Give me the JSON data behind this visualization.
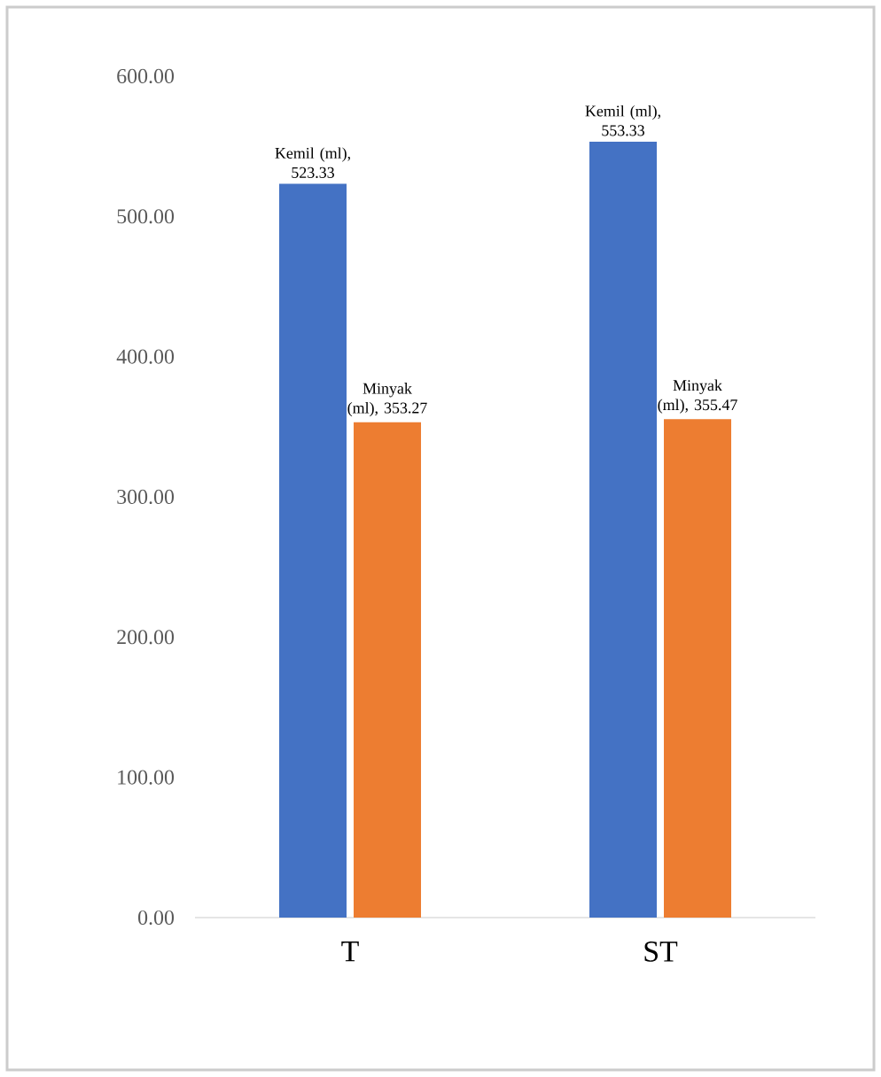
{
  "chart_data": {
    "type": "bar",
    "categories": [
      "T",
      "ST"
    ],
    "series": [
      {
        "color": "#4472c4",
        "values": [
          523.33,
          553.33
        ],
        "value_labels": [
          "Kemil (ml), 523.33",
          "Kemil (ml), 553.33"
        ]
      },
      {
        "color": "#ed7d31",
        "values": [
          353.27,
          355.47
        ],
        "value_labels": [
          "Minyak (ml), 353.27",
          "Minyak (ml), 355.47"
        ]
      }
    ],
    "ylim": [
      0,
      600
    ],
    "yticks": [
      {
        "value": 0,
        "label": "0.00"
      },
      {
        "value": 100,
        "label": "100.00"
      },
      {
        "value": 200,
        "label": "200.00"
      },
      {
        "value": 300,
        "label": "300.00"
      },
      {
        "value": 400,
        "label": "400.00"
      },
      {
        "value": 500,
        "label": "500.00"
      },
      {
        "value": 600,
        "label": "600.00"
      }
    ]
  }
}
